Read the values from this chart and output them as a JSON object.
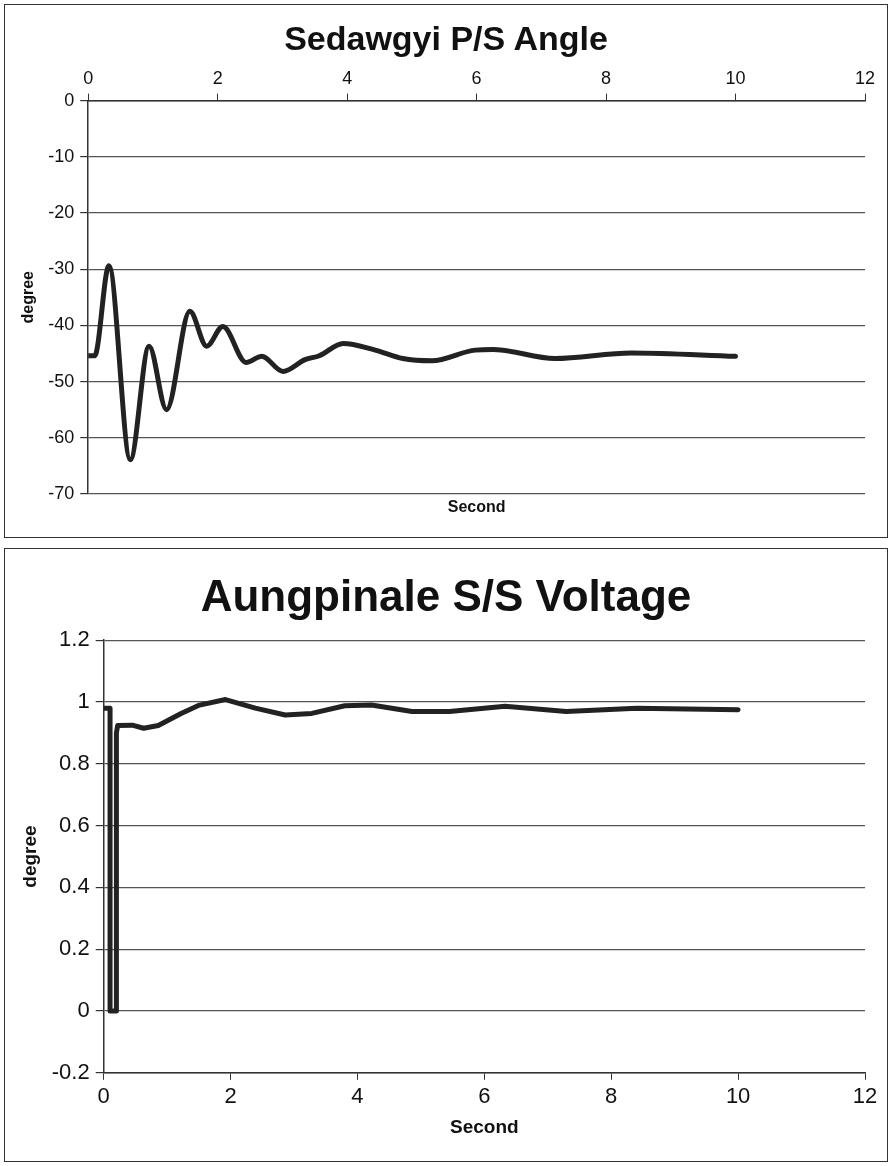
{
  "chart_data": [
    {
      "type": "line",
      "title": "Sedawgyi P/S Angle",
      "xlabel": "Second",
      "ylabel": "degree",
      "color": "#222222",
      "grid": "y",
      "x": [
        0,
        0.1,
        0.32,
        0.65,
        0.94,
        1.21,
        1.57,
        1.83,
        2.08,
        2.44,
        2.68,
        3.01,
        3.35,
        3.57,
        3.94,
        4.41,
        4.86,
        5.31,
        5.98,
        6.26,
        7.21,
        8.39,
        10
      ],
      "values": [
        -45.4,
        -45.4,
        -29.4,
        -63.9,
        -43.7,
        -55,
        -37.5,
        -43.7,
        -40.2,
        -46.6,
        -45.5,
        -48.2,
        -46.1,
        -45.4,
        -43.2,
        -44.3,
        -45.9,
        -46.3,
        -44.4,
        -44.3,
        -45.9,
        -44.9,
        -45.5
      ],
      "xlim": [
        0,
        12
      ],
      "xticks": [
        0,
        2,
        4,
        6,
        8,
        10,
        12
      ],
      "ylim": [
        -70,
        0
      ],
      "yticks": [
        -70,
        -60,
        -50,
        -40,
        -30,
        -20,
        -10,
        0
      ]
    },
    {
      "type": "line",
      "title": "Aungpinale S/S Voltage",
      "xlabel": "Second",
      "ylabel": "degree",
      "color": "#222222",
      "grid": "y",
      "x": [
        0,
        0.1,
        0.1,
        0.2,
        0.2,
        0.22,
        0.45,
        0.63,
        0.86,
        1.22,
        1.51,
        1.92,
        2.39,
        2.86,
        3.28,
        3.8,
        4.22,
        4.86,
        5.45,
        6.33,
        7.29,
        8.4,
        10
      ],
      "values": [
        0.98,
        0.98,
        0,
        0,
        0.9,
        0.924,
        0.925,
        0.915,
        0.924,
        0.963,
        0.99,
        1.008,
        0.98,
        0.958,
        0.963,
        0.988,
        0.99,
        0.969,
        0.969,
        0.986,
        0.969,
        0.98,
        0.975
      ],
      "xlim": [
        0,
        12
      ],
      "xticks": [
        0,
        2,
        4,
        6,
        8,
        10,
        12
      ],
      "ylim": [
        -0.2,
        1.2
      ],
      "yticks": [
        -0.2,
        0,
        0.2,
        0.4,
        0.6,
        0.8,
        1,
        1.2
      ]
    }
  ]
}
